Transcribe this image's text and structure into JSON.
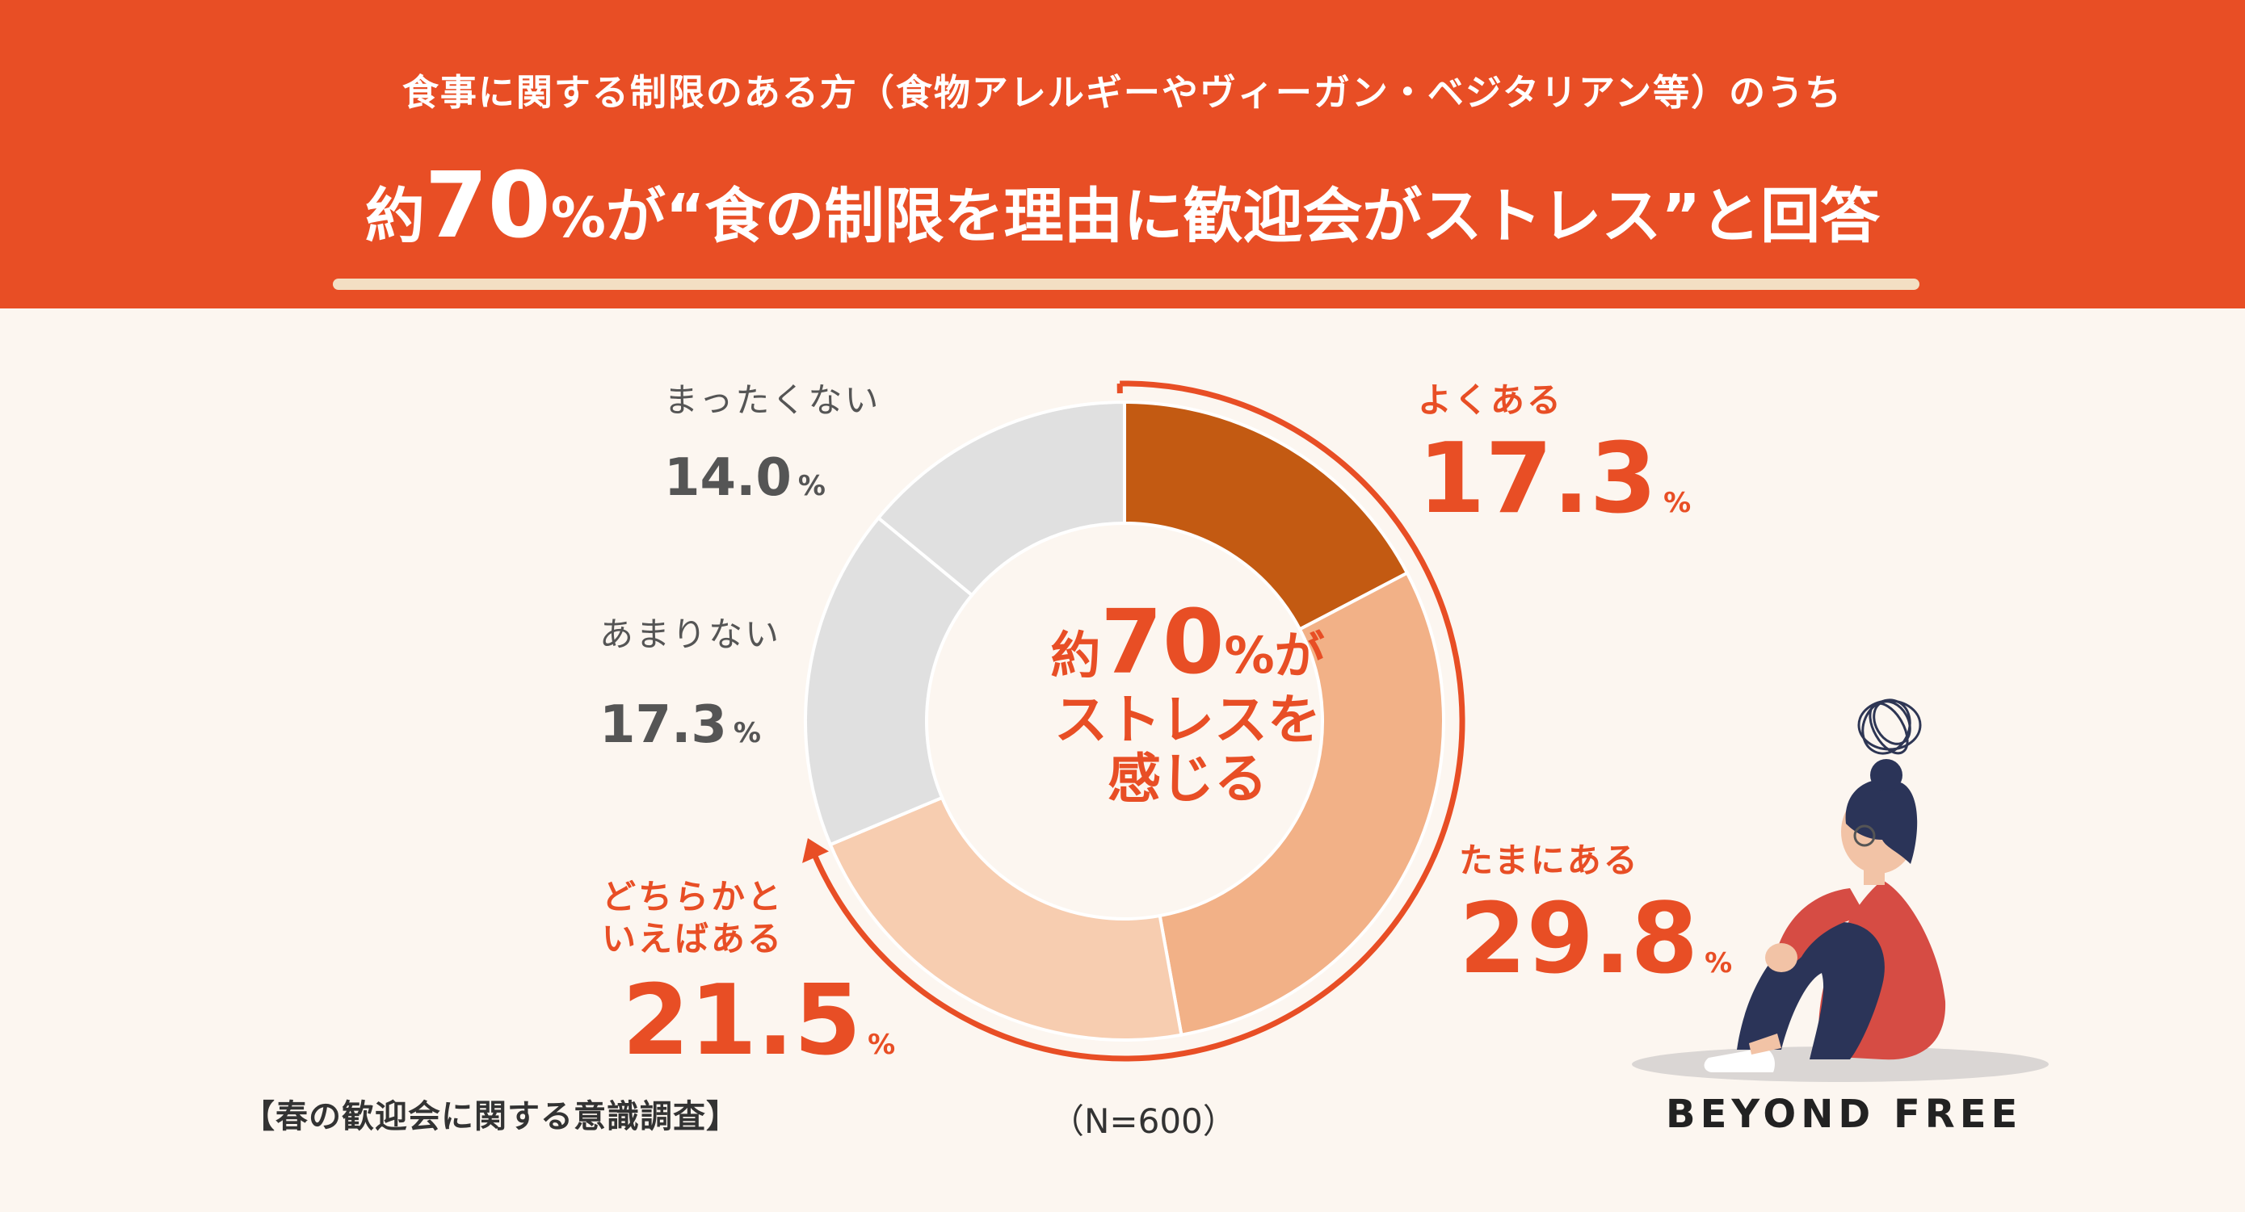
{
  "header": {
    "subtitle": "食事に関する制限のある方（食物アレルギーやヴィーガン・ベジタリアン等）のうち",
    "headline_prefix": "約",
    "headline_number": "70",
    "headline_pct": "%",
    "headline_rest": "が“食の制限を理由に歓迎会がストレス”と回答"
  },
  "center": {
    "prefix": "約",
    "number": "70",
    "suffix": "%が",
    "line2": "ストレスを",
    "line3": "感じる"
  },
  "unit": "%",
  "colors": {
    "accent": "#e84e25",
    "yoku": "#c35a12",
    "tama": "#f2b187",
    "dochira": "#f7cdb0",
    "amari": "#e0e0e0",
    "mattaku": "#e0e0e0"
  },
  "chart_data": {
    "type": "pie",
    "donut": true,
    "categories": [
      "よくある",
      "たまにある",
      "どちらかといえばある",
      "あまりない",
      "まったくない"
    ],
    "category_lines": [
      [
        "よくある"
      ],
      [
        "たまにある"
      ],
      [
        "どちらかと",
        "いえばある"
      ],
      [
        "あまりない"
      ],
      [
        "まったくない"
      ]
    ],
    "values": [
      17.3,
      29.8,
      21.5,
      17.3,
      14.0
    ],
    "value_labels": [
      "17.3",
      "29.8",
      "21.5",
      "17.3",
      "14.0"
    ],
    "bracket_total_label": "約70%"
  },
  "footer": {
    "survey_title": "【春の歓迎会に関する意識調査】",
    "sample_size": "（N=600）",
    "logo": "BEYOND FREE"
  }
}
